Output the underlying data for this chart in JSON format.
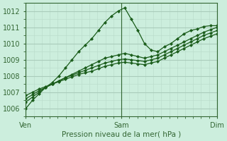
{
  "xlabel": "Pression niveau de la mer( hPa )",
  "bg_color": "#cceedd",
  "grid_major_color": "#aaccbb",
  "grid_minor_color": "#bbddcc",
  "line_color": "#1a5c1a",
  "marker_color": "#1a5c1a",
  "xlim": [
    0,
    96
  ],
  "ylim": [
    1005.5,
    1012.5
  ],
  "yticks": [
    1006,
    1007,
    1008,
    1009,
    1010,
    1011,
    1012
  ],
  "xtick_positions": [
    0,
    48,
    96
  ],
  "xtick_labels": [
    "Ven",
    "Sam",
    "Dim"
  ],
  "vline_color": "#336633",
  "series": [
    [
      1006.0,
      1006.5,
      1006.9,
      1007.3,
      1007.6,
      1008.0,
      1008.5,
      1009.0,
      1009.5,
      1009.9,
      1010.3,
      1010.8,
      1011.3,
      1011.7,
      1012.0,
      1012.2,
      1011.5,
      1010.8,
      1010.0,
      1009.6,
      1009.5,
      1009.8,
      1010.0,
      1010.3,
      1010.6,
      1010.8,
      1010.9,
      1011.05,
      1011.1,
      1011.1
    ],
    [
      1006.4,
      1006.7,
      1007.0,
      1007.3,
      1007.5,
      1007.7,
      1007.9,
      1008.1,
      1008.3,
      1008.5,
      1008.7,
      1008.9,
      1009.1,
      1009.2,
      1009.3,
      1009.4,
      1009.3,
      1009.2,
      1009.1,
      1009.2,
      1009.3,
      1009.5,
      1009.7,
      1009.9,
      1010.1,
      1010.3,
      1010.5,
      1010.7,
      1010.85,
      1011.0
    ],
    [
      1006.6,
      1006.85,
      1007.1,
      1007.3,
      1007.5,
      1007.7,
      1007.9,
      1008.05,
      1008.2,
      1008.35,
      1008.5,
      1008.65,
      1008.8,
      1008.9,
      1009.0,
      1009.05,
      1009.0,
      1008.95,
      1008.9,
      1009.0,
      1009.1,
      1009.3,
      1009.5,
      1009.7,
      1009.9,
      1010.1,
      1010.3,
      1010.5,
      1010.65,
      1010.8
    ],
    [
      1006.8,
      1007.0,
      1007.2,
      1007.35,
      1007.5,
      1007.65,
      1007.8,
      1007.95,
      1008.1,
      1008.2,
      1008.3,
      1008.45,
      1008.6,
      1008.7,
      1008.8,
      1008.85,
      1008.8,
      1008.75,
      1008.7,
      1008.8,
      1008.9,
      1009.1,
      1009.3,
      1009.5,
      1009.7,
      1009.9,
      1010.1,
      1010.3,
      1010.45,
      1010.6
    ]
  ]
}
